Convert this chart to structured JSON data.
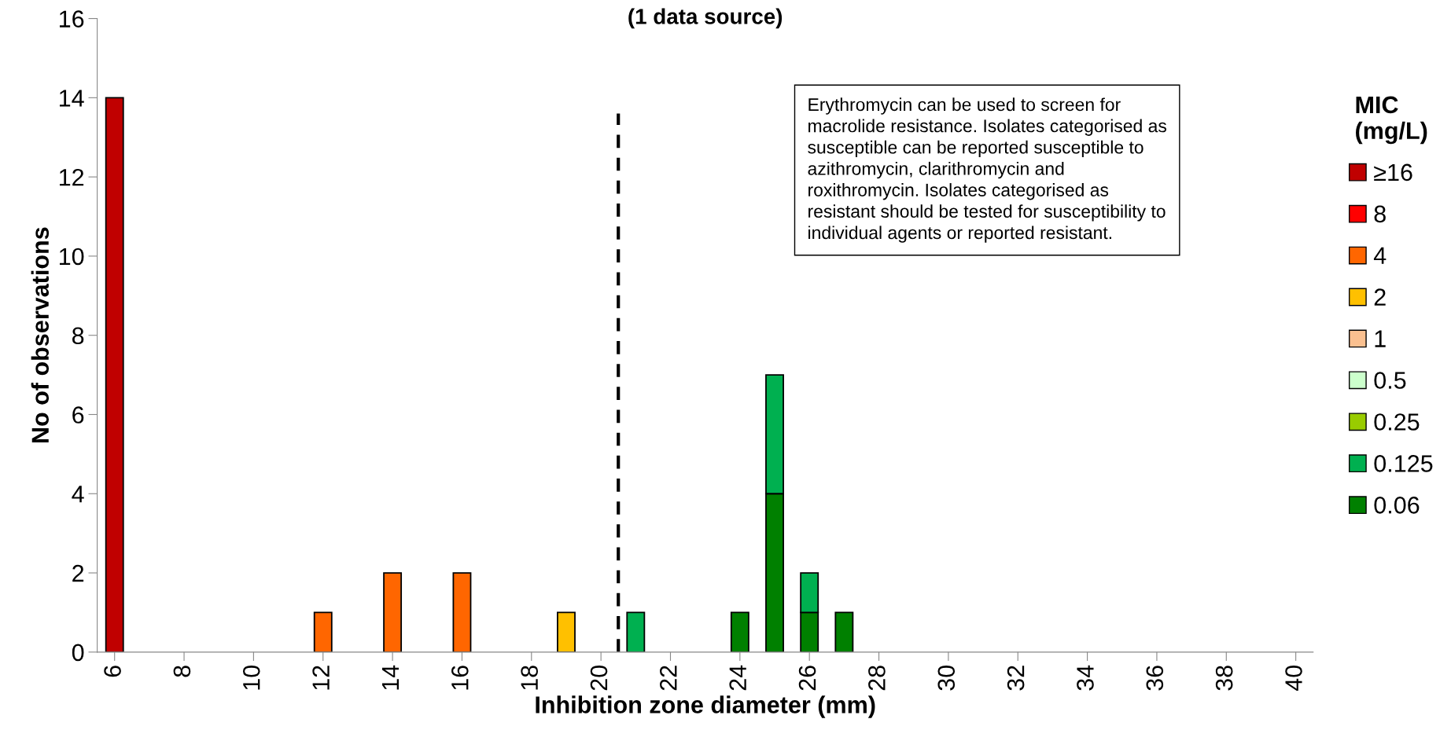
{
  "chart_data": {
    "type": "bar",
    "stacked": true,
    "title": "(1 data source)",
    "xlabel": "Inhibition zone diameter (mm)",
    "ylabel": "No of observations",
    "legend_title": "MIC\n(mg/L)",
    "legend": "right",
    "xlim": [
      5.5,
      40.5
    ],
    "xticks": [
      6,
      8,
      10,
      12,
      14,
      16,
      18,
      20,
      22,
      24,
      26,
      28,
      30,
      32,
      34,
      36,
      38,
      40
    ],
    "ylim": [
      0,
      16
    ],
    "yticks": [
      0,
      2,
      4,
      6,
      8,
      10,
      12,
      14,
      16
    ],
    "grid": false,
    "x": [
      6,
      12,
      14,
      16,
      19,
      21,
      24,
      25,
      26,
      27
    ],
    "series": [
      {
        "name": "0.06",
        "color": "#008000",
        "values": [
          null,
          null,
          null,
          null,
          null,
          null,
          1,
          4,
          1,
          1
        ]
      },
      {
        "name": "0.125",
        "color": "#00b050",
        "values": [
          null,
          null,
          null,
          null,
          null,
          1,
          null,
          3,
          1,
          null
        ]
      },
      {
        "name": "0.25",
        "color": "#99cc00",
        "values": [
          null,
          null,
          null,
          null,
          null,
          null,
          null,
          null,
          null,
          null
        ]
      },
      {
        "name": "0.5",
        "color": "#ccffcc",
        "values": [
          null,
          null,
          null,
          null,
          null,
          null,
          null,
          null,
          null,
          null
        ]
      },
      {
        "name": "1",
        "color": "#fac090",
        "values": [
          null,
          null,
          null,
          null,
          null,
          null,
          null,
          null,
          null,
          null
        ]
      },
      {
        "name": "2",
        "color": "#ffc000",
        "values": [
          null,
          null,
          null,
          null,
          1,
          null,
          null,
          null,
          null,
          null
        ]
      },
      {
        "name": "4",
        "color": "#ff6600",
        "values": [
          null,
          1,
          2,
          2,
          null,
          null,
          null,
          null,
          null,
          null
        ]
      },
      {
        "name": "8",
        "color": "#ff0000",
        "values": [
          null,
          null,
          null,
          null,
          null,
          null,
          null,
          null,
          null,
          null
        ]
      },
      {
        "name": "≥16",
        "color": "#c00000",
        "values": [
          14,
          null,
          null,
          null,
          null,
          null,
          null,
          null,
          null,
          null
        ]
      }
    ],
    "ref_lines": [
      {
        "axis": "x",
        "value": 20.5,
        "color": "#000000",
        "line_style": "dashed"
      }
    ],
    "annotations": [
      "Erythromycin can be used to screen for\nmacrolide resistance. Isolates categorised as\nsusceptible can be reported susceptible to\nazithromycin, clarithromycin and\nroxithromycin. Isolates categorised as\nresistant should be tested for susceptibility to\nindividual agents or reported resistant."
    ]
  }
}
